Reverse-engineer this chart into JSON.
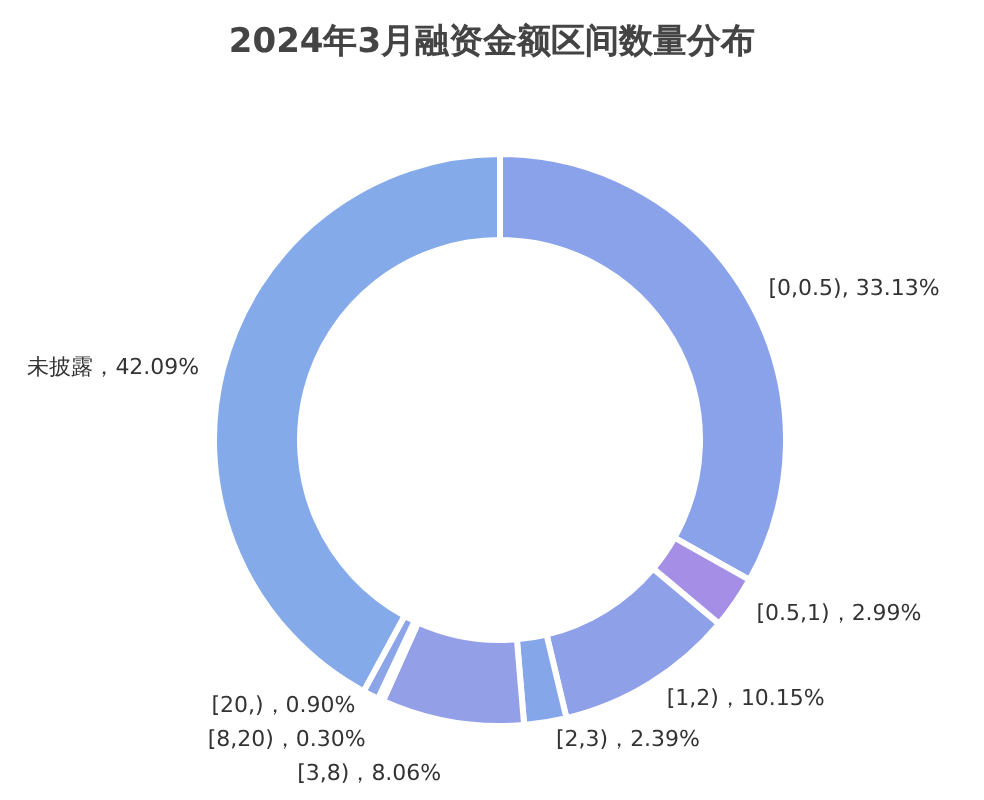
{
  "chart_data": {
    "type": "donut",
    "title": "2024年3月融资金额区间数量分布",
    "categories": [
      "[0,0.5)",
      "[0.5,1)",
      "[1,2)",
      "[2,3)",
      "[3,8)",
      "[8,20)",
      "[20,)",
      "未披露"
    ],
    "values": [
      33.13,
      2.99,
      10.15,
      2.39,
      8.06,
      0.3,
      0.9,
      42.09
    ],
    "colors": [
      "#8aa2ea",
      "#a58fe6",
      "#8ea0e8",
      "#86a6ea",
      "#93a0e8",
      "#8aa6ea",
      "#8ca4e8",
      "#84aaea"
    ],
    "value_labels": [
      ", 33.13%",
      "，2.99%",
      "，10.15%",
      "，2.39%",
      "，8.06%",
      "，0.30%",
      "，0.90%",
      "，42.09%"
    ]
  }
}
